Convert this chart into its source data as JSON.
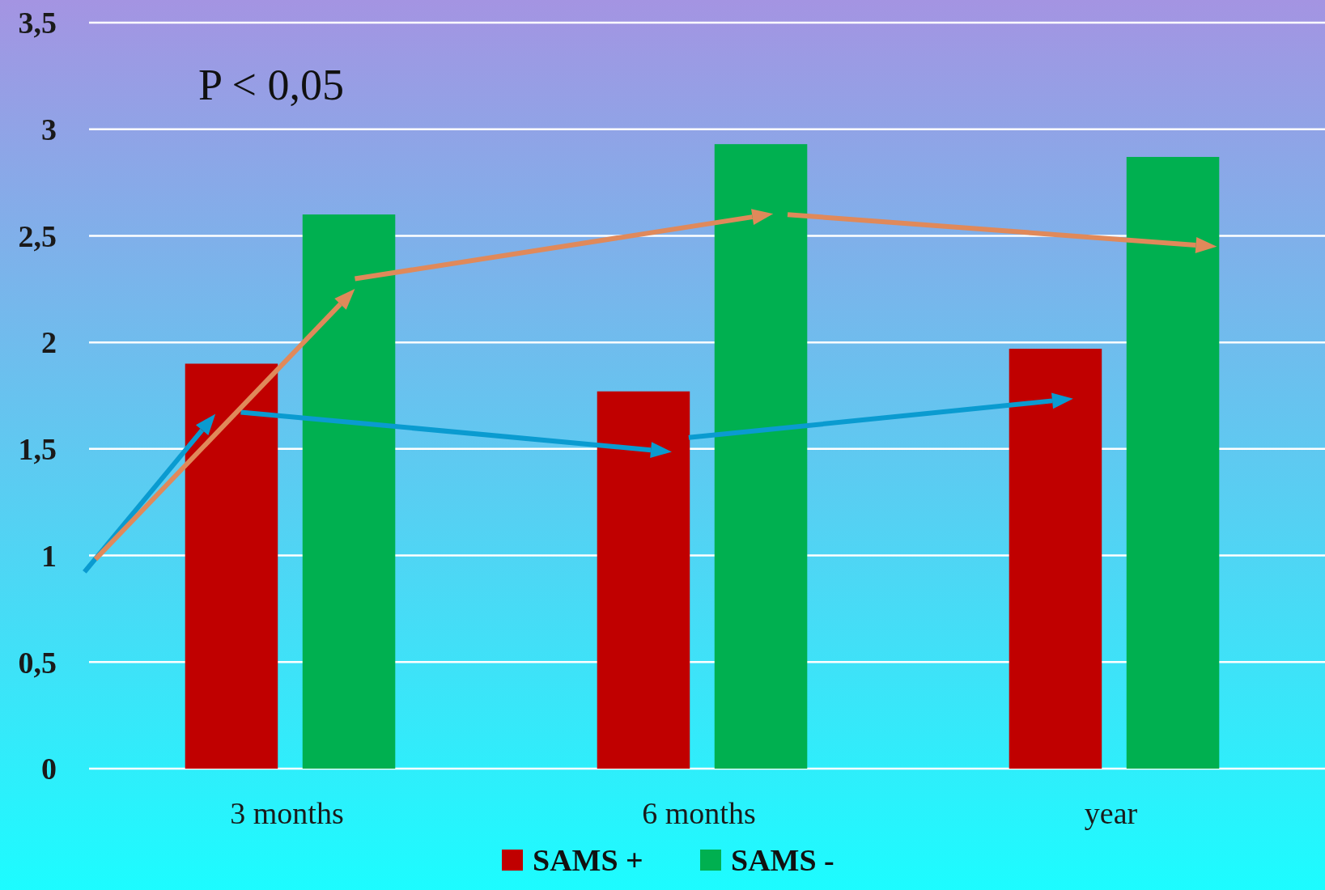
{
  "chart_data": {
    "type": "bar",
    "categories": [
      "3 months",
      "6 months",
      "year"
    ],
    "series": [
      {
        "name": "SAMS +",
        "color": "#c00000",
        "values": [
          1.9,
          1.77,
          1.97
        ]
      },
      {
        "name": "SAMS -",
        "color": "#00b050",
        "values": [
          2.6,
          2.93,
          2.87
        ]
      }
    ],
    "ylim": [
      0,
      3.5
    ],
    "yticks": [
      {
        "value": 0,
        "label": "0"
      },
      {
        "value": 0.5,
        "label": "0,5"
      },
      {
        "value": 1,
        "label": "1"
      },
      {
        "value": 1.5,
        "label": "1,5"
      },
      {
        "value": 2,
        "label": "2"
      },
      {
        "value": 2.5,
        "label": "2,5"
      },
      {
        "value": 3,
        "label": "3"
      },
      {
        "value": 3.5,
        "label": "3,5"
      }
    ],
    "grid": "y",
    "legend": "bottom",
    "annotations": [
      "P < 0,05"
    ]
  }
}
